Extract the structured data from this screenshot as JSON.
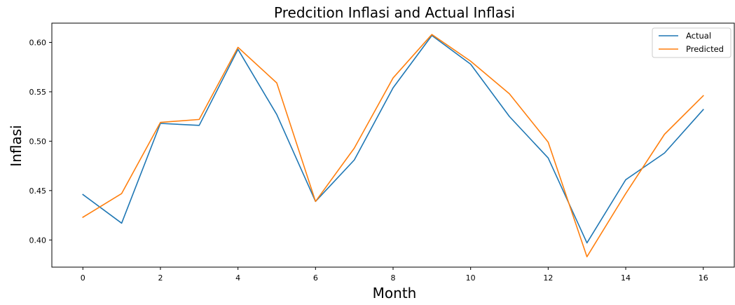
{
  "chart_data": {
    "type": "line",
    "title": "Predcition Inflasi and Actual Inflasi",
    "xlabel": "Month",
    "ylabel": "Inflasi",
    "x": [
      0,
      1,
      2,
      3,
      4,
      5,
      6,
      7,
      8,
      9,
      10,
      11,
      12,
      13,
      14,
      15,
      16
    ],
    "xlim": [
      -0.8,
      16.8
    ],
    "ylim": [
      0.3725,
      0.6195
    ],
    "xticks": [
      0,
      2,
      4,
      6,
      8,
      10,
      12,
      14,
      16
    ],
    "xtick_labels": [
      "0",
      "2",
      "4",
      "6",
      "8",
      "10",
      "12",
      "14",
      "16"
    ],
    "yticks": [
      0.4,
      0.45,
      0.5,
      0.55,
      0.6
    ],
    "ytick_labels": [
      "0.40",
      "0.45",
      "0.50",
      "0.55",
      "0.60"
    ],
    "grid": false,
    "legend_position": "top-right",
    "series": [
      {
        "name": "Actual",
        "color": "#1f77b4",
        "values": [
          0.446,
          0.417,
          0.518,
          0.516,
          0.593,
          0.527,
          0.439,
          0.481,
          0.554,
          0.607,
          0.578,
          0.525,
          0.483,
          0.397,
          0.461,
          0.488,
          0.532
        ]
      },
      {
        "name": "Predicted",
        "color": "#ff7f0e",
        "values": [
          0.423,
          0.447,
          0.519,
          0.522,
          0.595,
          0.559,
          0.439,
          0.493,
          0.564,
          0.608,
          0.581,
          0.548,
          0.499,
          0.383,
          0.447,
          0.507,
          0.546
        ]
      }
    ]
  }
}
